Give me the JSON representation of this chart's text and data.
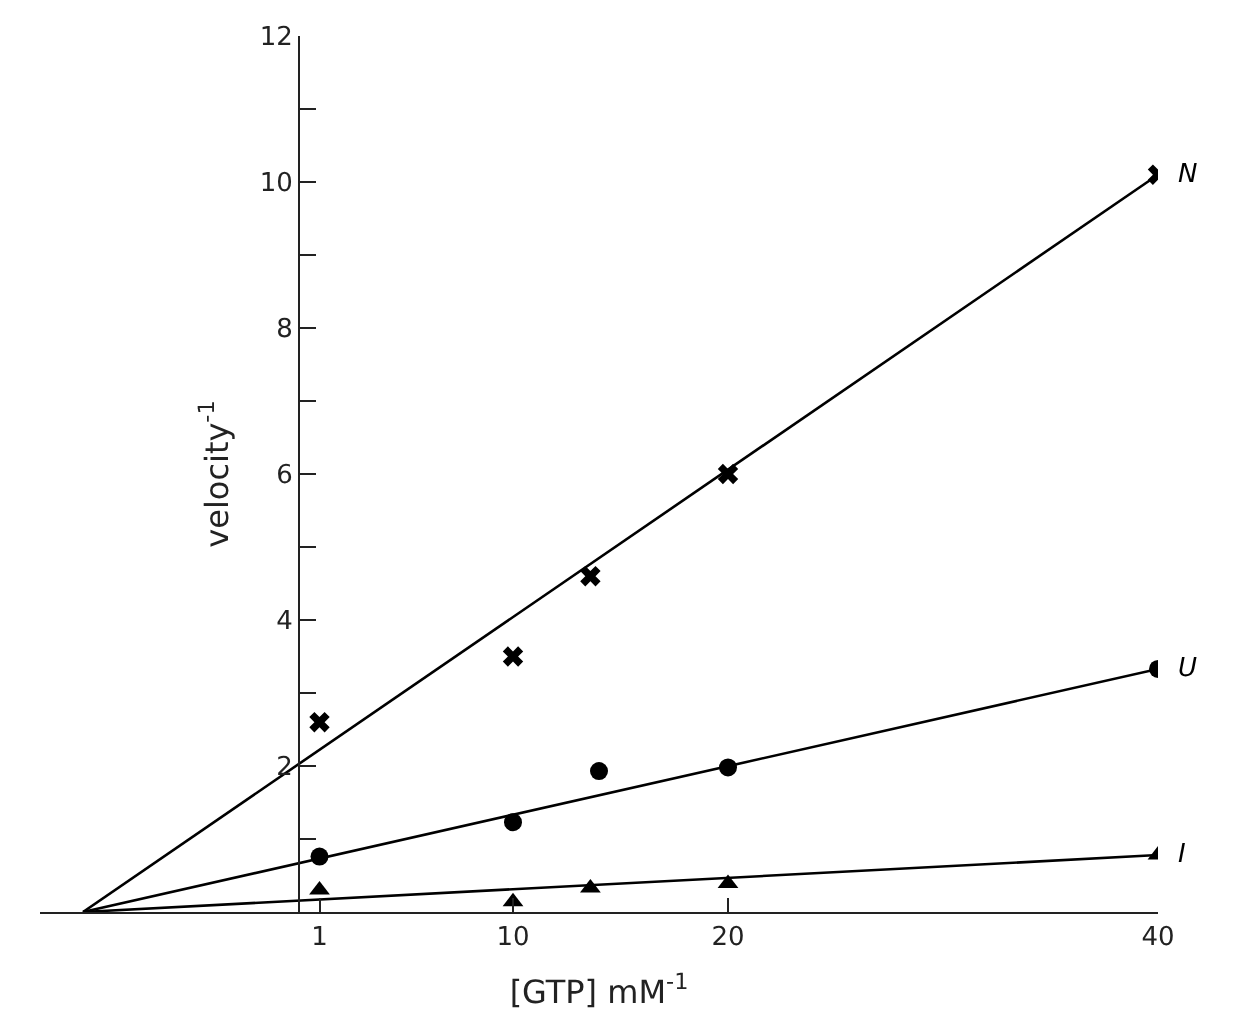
{
  "chart_data": {
    "type": "scatter",
    "xlabel": "[GTP] mM$^{-1}$",
    "ylabel": "velocity$^{-1}$",
    "xlim": [
      -12,
      40
    ],
    "ylim": [
      0,
      12
    ],
    "xticks": [
      1,
      10,
      20,
      40
    ],
    "yticks": [
      {
        "value": 1,
        "label": null
      },
      2,
      {
        "value": 3,
        "label": null
      },
      4,
      {
        "value": 5,
        "label": null
      },
      6,
      {
        "value": 7,
        "label": null
      },
      8,
      {
        "value": 9,
        "label": null
      },
      10,
      {
        "value": 11,
        "label": null
      },
      12
    ],
    "series": [
      {
        "name": "N",
        "marker": "cross",
        "color": "#000000",
        "x": [
          1,
          10,
          13.6,
          20,
          40
        ],
        "values": [
          2.6,
          3.5,
          4.6,
          6.0,
          10.1
        ]
      },
      {
        "name": "U",
        "marker": "circle",
        "color": "#000000",
        "x": [
          1,
          10,
          14,
          20,
          40
        ],
        "values": [
          0.76,
          1.23,
          1.93,
          1.98,
          3.33
        ]
      },
      {
        "name": "I",
        "marker": "triangle",
        "color": "#000000",
        "x": [
          1,
          10,
          13.6,
          20,
          40
        ],
        "values": [
          0.3,
          0.14,
          0.33,
          0.39,
          0.78
        ]
      },
      {
        "type": "line",
        "marker": "none",
        "color": "#000000",
        "x": [
          -10,
          40
        ],
        "values": [
          0,
          10.1
        ]
      },
      {
        "type": "line",
        "marker": "none",
        "color": "#000000",
        "x": [
          -10,
          40
        ],
        "values": [
          0,
          3.33
        ]
      },
      {
        "type": "line",
        "marker": "none",
        "color": "#000000",
        "x": [
          -10,
          40
        ],
        "values": [
          0,
          0.78
        ]
      }
    ]
  }
}
